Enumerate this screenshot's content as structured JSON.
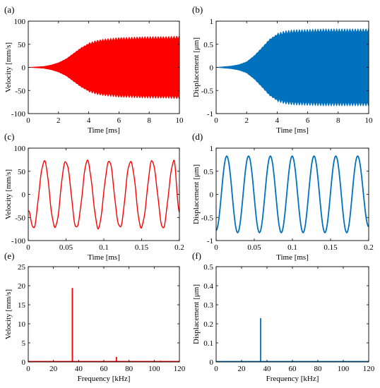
{
  "figure": {
    "panels": [
      {
        "id": "a",
        "label": "(a)",
        "color": "#ff0000",
        "type": "envelope",
        "xlabel": "Time [ms]",
        "ylabel": "Velocity [mm/s]",
        "xlim": [
          0,
          10
        ],
        "ylim": [
          -100,
          100
        ],
        "xticks": [
          0,
          2,
          4,
          6,
          8,
          10
        ],
        "yticks": [
          -100,
          -50,
          0,
          50,
          100
        ],
        "xtick_labels": [
          "0",
          "2",
          "4",
          "6",
          "8",
          "10"
        ],
        "ytick_labels": [
          "-100",
          "-50",
          "0",
          "50",
          "100"
        ]
      },
      {
        "id": "b",
        "label": "(b)",
        "color": "#0072bd",
        "type": "envelope",
        "xlabel": "Time [ms]",
        "ylabel": "Displacement [μm]",
        "xlim": [
          0,
          10
        ],
        "ylim": [
          -1,
          1
        ],
        "xticks": [
          0,
          2,
          4,
          6,
          8,
          10
        ],
        "yticks": [
          -1,
          -0.5,
          0,
          0.5,
          1
        ],
        "xtick_labels": [
          "0",
          "2",
          "4",
          "6",
          "8",
          "10"
        ],
        "ytick_labels": [
          "-1",
          "-0.5",
          "0",
          "0.5",
          "1"
        ]
      },
      {
        "id": "c",
        "label": "(c)",
        "color": "#ff0000",
        "type": "line",
        "xlabel": "Time [ms]",
        "ylabel": "Velocity [mm/s]",
        "xlim": [
          0,
          0.2
        ],
        "ylim": [
          -100,
          100
        ],
        "xticks": [
          0,
          0.05,
          0.1,
          0.15,
          0.2
        ],
        "yticks": [
          -100,
          -50,
          0,
          50,
          100
        ],
        "xtick_labels": [
          "0",
          "0.05",
          "0.1",
          "0.15",
          "0.2"
        ],
        "ytick_labels": [
          "-100",
          "-50",
          "0",
          "50",
          "100"
        ]
      },
      {
        "id": "d",
        "label": "(d)",
        "color": "#0072bd",
        "type": "line",
        "xlabel": "Time [ms]",
        "ylabel": "Displacement [μm]",
        "xlim": [
          0,
          0.2
        ],
        "ylim": [
          -1,
          1
        ],
        "xticks": [
          0,
          0.05,
          0.1,
          0.15,
          0.2
        ],
        "yticks": [
          -1,
          -0.5,
          0,
          0.5,
          1
        ],
        "xtick_labels": [
          "0",
          "0.05",
          "0.1",
          "0.15",
          "0.2"
        ],
        "ytick_labels": [
          "-1",
          "-0.5",
          "0",
          "0.5",
          "1"
        ]
      },
      {
        "id": "e",
        "label": "(e)",
        "color": "#ff0000",
        "type": "spectrum",
        "xlabel": "Frequency [kHz]",
        "ylabel": "Velocity [mm/s]",
        "xlim": [
          0,
          120
        ],
        "ylim": [
          0,
          25
        ],
        "xticks": [
          0,
          20,
          40,
          60,
          80,
          100,
          120
        ],
        "yticks": [
          0,
          5,
          10,
          15,
          20,
          25
        ],
        "xtick_labels": [
          "0",
          "20",
          "40",
          "60",
          "80",
          "100",
          "120"
        ],
        "ytick_labels": [
          "0",
          "5",
          "10",
          "15",
          "20",
          "25"
        ]
      },
      {
        "id": "f",
        "label": "(f)",
        "color": "#0072bd",
        "type": "spectrum",
        "xlabel": "Frequency [kHz]",
        "ylabel": "Displacement [μm]",
        "xlim": [
          0,
          120
        ],
        "ylim": [
          0,
          0.5
        ],
        "xticks": [
          0,
          20,
          40,
          60,
          80,
          100,
          120
        ],
        "yticks": [
          0,
          0.1,
          0.2,
          0.3,
          0.4,
          0.5
        ],
        "xtick_labels": [
          "0",
          "20",
          "40",
          "60",
          "80",
          "100",
          "120"
        ],
        "ytick_labels": [
          "0",
          "0.1",
          "0.2",
          "0.3",
          "0.4",
          "0.5"
        ]
      }
    ]
  },
  "chart_data": [
    {
      "panel": "(a)",
      "type": "area",
      "title": "",
      "xlabel": "Time [ms]",
      "ylabel": "Velocity [mm/s]",
      "xlim": [
        0,
        10
      ],
      "ylim": [
        -100,
        100
      ],
      "grid": false,
      "series": [
        {
          "x": [
            0,
            1,
            1.5,
            2,
            2.5,
            3,
            3.5,
            4,
            4.5,
            5,
            6,
            7,
            8,
            9,
            10
          ],
          "upper": [
            0,
            2,
            5,
            10,
            18,
            30,
            42,
            51,
            56,
            59,
            62,
            63,
            64,
            64,
            65
          ],
          "lower": [
            0,
            -2,
            -5,
            -10,
            -18,
            -30,
            -42,
            -51,
            -56,
            -59,
            -62,
            -63,
            -64,
            -64,
            -65
          ]
        }
      ]
    },
    {
      "panel": "(b)",
      "type": "area",
      "title": "",
      "xlabel": "Time [ms]",
      "ylabel": "Displacement [μm]",
      "xlim": [
        0,
        10
      ],
      "ylim": [
        -1,
        1
      ],
      "grid": false,
      "series": [
        {
          "x": [
            0,
            1,
            1.5,
            2,
            2.5,
            3,
            3.5,
            4,
            4.5,
            5,
            6,
            7,
            8,
            9,
            10
          ],
          "upper": [
            0,
            0.03,
            0.06,
            0.12,
            0.25,
            0.42,
            0.6,
            0.71,
            0.76,
            0.78,
            0.79,
            0.8,
            0.8,
            0.8,
            0.8
          ],
          "lower": [
            0,
            -0.03,
            -0.06,
            -0.12,
            -0.25,
            -0.42,
            -0.6,
            -0.71,
            -0.76,
            -0.78,
            -0.79,
            -0.8,
            -0.8,
            -0.8,
            -0.8
          ]
        }
      ]
    },
    {
      "panel": "(c)",
      "type": "line",
      "title": "",
      "xlabel": "Time [ms]",
      "ylabel": "Velocity [mm/s]",
      "xlim": [
        0,
        0.2
      ],
      "ylim": [
        -100,
        100
      ],
      "grid": false,
      "series": [
        {
          "x": [
            0,
            0.0068,
            0.0211,
            0.0354,
            0.0497,
            0.064,
            0.0783,
            0.0926,
            0.1069,
            0.1212,
            0.1354,
            0.1497,
            0.164,
            0.1783,
            0.1926,
            0.2
          ],
          "y": [
            -37,
            -72,
            72,
            -72,
            72,
            -72,
            72,
            -72,
            72,
            -72,
            72,
            -72,
            72,
            -72,
            72,
            -37
          ]
        }
      ]
    },
    {
      "panel": "(d)",
      "type": "line",
      "title": "",
      "xlabel": "Time [ms]",
      "ylabel": "Displacement [μm]",
      "xlim": [
        0,
        0.2
      ],
      "ylim": [
        -1,
        1
      ],
      "grid": false,
      "series": [
        {
          "x": [
            0,
            0.0139,
            0.0282,
            0.0425,
            0.0568,
            0.0711,
            0.0854,
            0.0997,
            0.114,
            0.1283,
            0.1426,
            0.1569,
            0.1712,
            0.1855,
            0.2
          ],
          "y": [
            -0.78,
            0.83,
            -0.83,
            0.83,
            -0.83,
            0.83,
            -0.83,
            0.83,
            -0.83,
            0.83,
            -0.83,
            0.83,
            -0.83,
            0.83,
            -0.7
          ]
        }
      ]
    },
    {
      "panel": "(e)",
      "type": "line",
      "title": "",
      "xlabel": "Frequency [kHz]",
      "ylabel": "Velocity [mm/s]",
      "xlim": [
        0,
        120
      ],
      "ylim": [
        0,
        25
      ],
      "grid": false,
      "series": [
        {
          "x": [
            35,
            70,
            105
          ],
          "y": [
            19.4,
            1.3,
            0.3
          ]
        }
      ]
    },
    {
      "panel": "(f)",
      "type": "line",
      "title": "",
      "xlabel": "Frequency [kHz]",
      "ylabel": "Displacement [μm]",
      "xlim": [
        0,
        120
      ],
      "ylim": [
        0,
        0.5
      ],
      "grid": false,
      "series": [
        {
          "x": [
            35
          ],
          "y": [
            0.23
          ]
        }
      ]
    }
  ]
}
